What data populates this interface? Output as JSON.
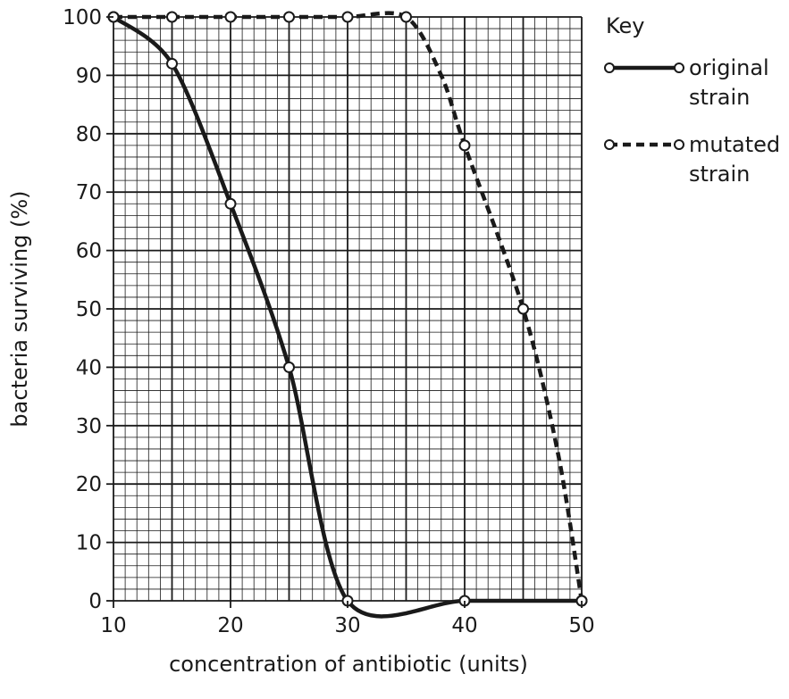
{
  "chart_data": {
    "type": "line",
    "xlabel": "concentration of antibiotic (units)",
    "ylabel": "bacteria surviving (%)",
    "xlim": [
      10,
      50
    ],
    "ylim": [
      0,
      100
    ],
    "x_ticks": [
      10,
      20,
      30,
      40,
      50
    ],
    "y_ticks": [
      0,
      10,
      20,
      30,
      40,
      50,
      60,
      70,
      80,
      90,
      100
    ],
    "grid": "on",
    "legend": {
      "title": "Key",
      "placement": "top-right outside plot",
      "entries": [
        {
          "lines": [
            "original",
            "strain"
          ],
          "style": "solid"
        },
        {
          "lines": [
            "mutated",
            "strain"
          ],
          "style": "dashed"
        }
      ]
    },
    "series": [
      {
        "name": "original strain",
        "style": "solid",
        "points": [
          [
            10,
            100
          ],
          [
            15,
            92
          ],
          [
            20,
            68
          ],
          [
            25,
            40
          ],
          [
            30,
            0
          ],
          [
            40,
            0
          ],
          [
            50,
            0
          ]
        ],
        "markers": [
          [
            10,
            100
          ],
          [
            15,
            92
          ],
          [
            20,
            68
          ],
          [
            25,
            40
          ],
          [
            30,
            0
          ],
          [
            40,
            0
          ],
          [
            50,
            0
          ]
        ]
      },
      {
        "name": "mutated strain",
        "style": "dashed",
        "points": [
          [
            10,
            100
          ],
          [
            15,
            100
          ],
          [
            20,
            100
          ],
          [
            25,
            100
          ],
          [
            30,
            100
          ],
          [
            35,
            100
          ],
          [
            38,
            90
          ],
          [
            40,
            78
          ],
          [
            45,
            50
          ],
          [
            48,
            25
          ],
          [
            50,
            0
          ]
        ],
        "markers": [
          [
            10,
            100
          ],
          [
            15,
            100
          ],
          [
            20,
            100
          ],
          [
            25,
            100
          ],
          [
            30,
            100
          ],
          [
            35,
            100
          ],
          [
            40,
            78
          ],
          [
            45,
            50
          ],
          [
            50,
            0
          ]
        ]
      }
    ]
  }
}
